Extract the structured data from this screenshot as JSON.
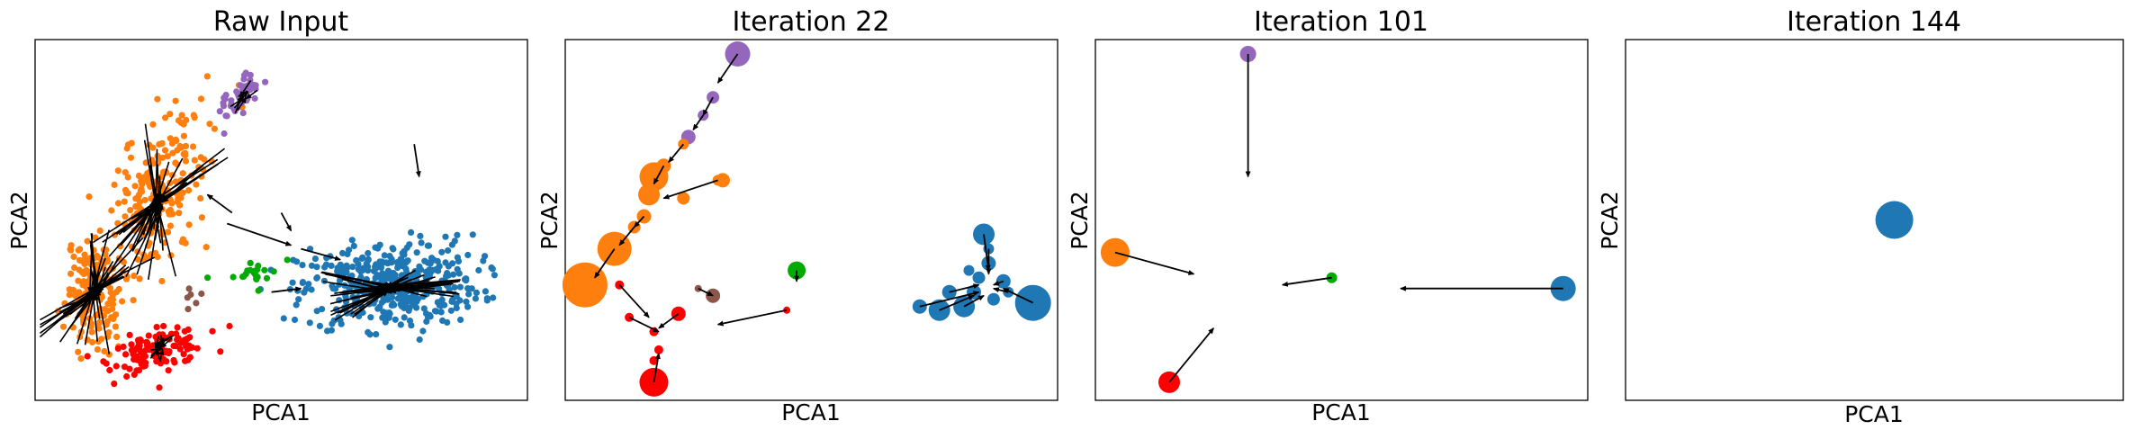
{
  "chart_data": [
    {
      "type": "scatter",
      "title": "Raw Input",
      "xlabel": "PCA1",
      "ylabel": "PCA2",
      "xlim": [
        0,
        100
      ],
      "ylim": [
        0,
        100
      ],
      "ticks": "none",
      "cloud_clusters": [
        {
          "color": "#ff7f0e",
          "center": [
            12,
            30
          ],
          "spread": [
            6,
            8
          ],
          "count": 160,
          "tilt": 1.6
        },
        {
          "color": "#ff7f0e",
          "center": [
            25,
            58
          ],
          "spread": [
            8,
            12
          ],
          "count": 220,
          "tilt": 1.3
        },
        {
          "color": "#9467bd",
          "center": [
            42,
            84
          ],
          "spread": [
            3,
            4
          ],
          "count": 45,
          "tilt": 1.1
        },
        {
          "color": "#ff0000",
          "center": [
            25,
            14
          ],
          "spread": [
            5,
            5
          ],
          "count": 130,
          "tilt": 0.3
        },
        {
          "color": "#1f77b4",
          "center": [
            72,
            32
          ],
          "spread": [
            12,
            9
          ],
          "count": 420,
          "tilt": 0.1
        },
        {
          "color": "#00aa00",
          "center": [
            44,
            35
          ],
          "spread": [
            4,
            3
          ],
          "count": 22,
          "tilt": 0.2
        },
        {
          "color": "#8c564b",
          "center": [
            32,
            30
          ],
          "spread": [
            3,
            2
          ],
          "count": 6,
          "tilt": 0.0
        }
      ],
      "fan_arrows": [
        {
          "center": [
            12,
            30
          ],
          "count": 45,
          "radius": 18,
          "tilt": 1.15
        },
        {
          "center": [
            25,
            55
          ],
          "count": 40,
          "radius": 22,
          "tilt": 1.2
        },
        {
          "center": [
            72,
            31
          ],
          "count": 50,
          "radius": 15,
          "tilt": 0.25
        },
        {
          "center": [
            42,
            84
          ],
          "count": 8,
          "radius": 6,
          "tilt": 1.0
        },
        {
          "center": [
            25,
            15
          ],
          "count": 12,
          "radius": 5,
          "tilt": 1.2
        }
      ],
      "arrows": [
        {
          "from": [
            77,
            71
          ],
          "to": [
            78,
            62
          ]
        },
        {
          "from": [
            40,
            52
          ],
          "to": [
            35,
            57
          ]
        },
        {
          "from": [
            39,
            49
          ],
          "to": [
            52,
            43
          ]
        },
        {
          "from": [
            50,
            52
          ],
          "to": [
            52,
            47
          ]
        },
        {
          "from": [
            48,
            30
          ],
          "to": [
            54,
            31
          ]
        },
        {
          "from": [
            54,
            42
          ],
          "to": [
            62,
            39
          ]
        }
      ]
    },
    {
      "type": "scatter",
      "title": "Iteration 22",
      "xlabel": "PCA1",
      "ylabel": "PCA2",
      "xlim": [
        0,
        100
      ],
      "ylim": [
        0,
        100
      ],
      "ticks": "none",
      "points": [
        {
          "x": 35,
          "y": 96,
          "size": 14,
          "color": "#9467bd"
        },
        {
          "x": 30,
          "y": 84,
          "size": 7,
          "color": "#9467bd"
        },
        {
          "x": 28,
          "y": 79,
          "size": 6,
          "color": "#9467bd"
        },
        {
          "x": 25,
          "y": 73,
          "size": 8,
          "color": "#9467bd"
        },
        {
          "x": 24,
          "y": 71,
          "size": 6,
          "color": "#ff7f0e"
        },
        {
          "x": 20,
          "y": 65,
          "size": 8,
          "color": "#ff7f0e"
        },
        {
          "x": 18,
          "y": 62,
          "size": 16,
          "color": "#ff7f0e"
        },
        {
          "x": 17,
          "y": 57,
          "size": 12,
          "color": "#ff7f0e"
        },
        {
          "x": 16,
          "y": 51,
          "size": 8,
          "color": "#ff7f0e"
        },
        {
          "x": 14,
          "y": 48,
          "size": 7,
          "color": "#ff7f0e"
        },
        {
          "x": 10,
          "y": 42,
          "size": 19,
          "color": "#ff7f0e"
        },
        {
          "x": 4,
          "y": 32,
          "size": 25,
          "color": "#ff7f0e"
        },
        {
          "x": 24,
          "y": 56,
          "size": 7,
          "color": "#ff7f0e"
        },
        {
          "x": 32,
          "y": 61,
          "size": 8,
          "color": "#ff7f0e"
        },
        {
          "x": 31,
          "y": 61,
          "size": 6,
          "color": "#ff7f0e"
        },
        {
          "x": 18,
          "y": 5,
          "size": 16,
          "color": "#ff0000"
        },
        {
          "x": 23,
          "y": 24,
          "size": 8,
          "color": "#ff0000"
        },
        {
          "x": 11,
          "y": 32,
          "size": 5,
          "color": "#ff0000"
        },
        {
          "x": 13,
          "y": 23,
          "size": 5,
          "color": "#ff0000"
        },
        {
          "x": 18,
          "y": 19,
          "size": 5,
          "color": "#ff0000"
        },
        {
          "x": 19,
          "y": 14,
          "size": 5,
          "color": "#ff0000"
        },
        {
          "x": 18,
          "y": 11,
          "size": 5,
          "color": "#ff0000"
        },
        {
          "x": 45,
          "y": 25,
          "size": 4,
          "color": "#ff0000"
        },
        {
          "x": 30,
          "y": 29,
          "size": 8,
          "color": "#8c564b"
        },
        {
          "x": 27,
          "y": 31,
          "size": 4,
          "color": "#8c564b"
        },
        {
          "x": 47,
          "y": 36,
          "size": 10,
          "color": "#00aa00"
        },
        {
          "x": 95,
          "y": 27,
          "size": 20,
          "color": "#1f77b4"
        },
        {
          "x": 85,
          "y": 46,
          "size": 12,
          "color": "#1f77b4"
        },
        {
          "x": 76,
          "y": 25,
          "size": 12,
          "color": "#1f77b4"
        },
        {
          "x": 81,
          "y": 26,
          "size": 12,
          "color": "#1f77b4"
        },
        {
          "x": 72,
          "y": 26,
          "size": 8,
          "color": "#1f77b4"
        },
        {
          "x": 78,
          "y": 30,
          "size": 8,
          "color": "#1f77b4"
        },
        {
          "x": 83,
          "y": 30,
          "size": 8,
          "color": "#1f77b4"
        },
        {
          "x": 86,
          "y": 38,
          "size": 8,
          "color": "#1f77b4"
        },
        {
          "x": 89,
          "y": 33,
          "size": 8,
          "color": "#1f77b4"
        },
        {
          "x": 84,
          "y": 34,
          "size": 7,
          "color": "#1f77b4"
        },
        {
          "x": 87,
          "y": 28,
          "size": 7,
          "color": "#1f77b4"
        },
        {
          "x": 82,
          "y": 36,
          "size": 6,
          "color": "#1f77b4"
        },
        {
          "x": 90,
          "y": 30,
          "size": 6,
          "color": "#1f77b4"
        },
        {
          "x": 86,
          "y": 42,
          "size": 6,
          "color": "#1f77b4"
        }
      ],
      "arrows": [
        {
          "from": [
            35,
            96
          ],
          "to": [
            31,
            88
          ]
        },
        {
          "from": [
            30,
            84
          ],
          "to": [
            28,
            79
          ]
        },
        {
          "from": [
            28,
            79
          ],
          "to": [
            26,
            75
          ]
        },
        {
          "from": [
            24,
            71
          ],
          "to": [
            21,
            66
          ]
        },
        {
          "from": [
            20,
            65
          ],
          "to": [
            18,
            60
          ]
        },
        {
          "from": [
            16,
            51
          ],
          "to": [
            14,
            48
          ]
        },
        {
          "from": [
            14,
            48
          ],
          "to": [
            11,
            43
          ]
        },
        {
          "from": [
            10,
            42
          ],
          "to": [
            6,
            34
          ]
        },
        {
          "from": [
            31,
            61
          ],
          "to": [
            20,
            56
          ]
        },
        {
          "from": [
            18,
            5
          ],
          "to": [
            19,
            13
          ]
        },
        {
          "from": [
            11,
            32
          ],
          "to": [
            17,
            23
          ]
        },
        {
          "from": [
            13,
            23
          ],
          "to": [
            19,
            19
          ]
        },
        {
          "from": [
            23,
            24
          ],
          "to": [
            19,
            20
          ]
        },
        {
          "from": [
            45,
            25
          ],
          "to": [
            31,
            21
          ]
        },
        {
          "from": [
            27,
            31
          ],
          "to": [
            30,
            29
          ]
        },
        {
          "from": [
            47,
            36
          ],
          "to": [
            47,
            33
          ]
        },
        {
          "from": [
            72,
            26
          ],
          "to": [
            84,
            30
          ]
        },
        {
          "from": [
            76,
            25
          ],
          "to": [
            83,
            29
          ]
        },
        {
          "from": [
            81,
            26
          ],
          "to": [
            85,
            29
          ]
        },
        {
          "from": [
            78,
            30
          ],
          "to": [
            84,
            32
          ]
        },
        {
          "from": [
            85,
            46
          ],
          "to": [
            86,
            36
          ]
        },
        {
          "from": [
            86,
            42
          ],
          "to": [
            86,
            35
          ]
        },
        {
          "from": [
            95,
            27
          ],
          "to": [
            89,
            31
          ]
        },
        {
          "from": [
            89,
            33
          ],
          "to": [
            87,
            32
          ]
        },
        {
          "from": [
            90,
            30
          ],
          "to": [
            87,
            31
          ]
        }
      ]
    },
    {
      "type": "scatter",
      "title": "Iteration 101",
      "xlabel": "PCA1",
      "ylabel": "PCA2",
      "xlim": [
        0,
        100
      ],
      "ylim": [
        0,
        100
      ],
      "ticks": "none",
      "points": [
        {
          "x": 31,
          "y": 96,
          "size": 9,
          "color": "#9467bd"
        },
        {
          "x": 4,
          "y": 41,
          "size": 16,
          "color": "#ff7f0e"
        },
        {
          "x": 15,
          "y": 5,
          "size": 12,
          "color": "#ff0000"
        },
        {
          "x": 48,
          "y": 34,
          "size": 6,
          "color": "#00aa00"
        },
        {
          "x": 95,
          "y": 31,
          "size": 14,
          "color": "#1f77b4"
        }
      ],
      "arrows": [
        {
          "from": [
            31,
            96
          ],
          "to": [
            31,
            62
          ]
        },
        {
          "from": [
            4,
            41
          ],
          "to": [
            20,
            35
          ]
        },
        {
          "from": [
            15,
            5
          ],
          "to": [
            24,
            20
          ]
        },
        {
          "from": [
            48,
            34
          ],
          "to": [
            38,
            32
          ]
        },
        {
          "from": [
            95,
            31
          ],
          "to": [
            62,
            31
          ]
        }
      ]
    },
    {
      "type": "scatter",
      "title": "Iteration 144",
      "xlabel": "PCA1",
      "ylabel": "PCA2",
      "xlim": [
        0,
        100
      ],
      "ylim": [
        0,
        100
      ],
      "ticks": "none",
      "points": [
        {
          "x": 54,
          "y": 50,
          "size": 21,
          "color": "#1f77b4"
        }
      ],
      "arrows": []
    }
  ]
}
